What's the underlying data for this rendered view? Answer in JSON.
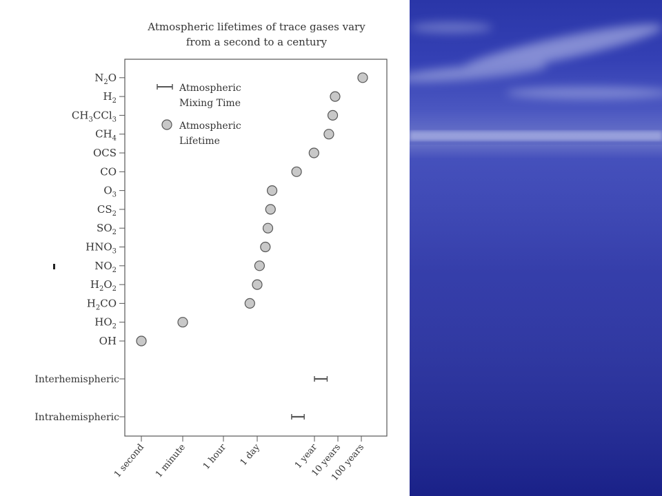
{
  "chart_data": {
    "type": "scatter",
    "title": [
      "Atmospheric lifetimes of trace gases vary",
      "from a second to a century"
    ],
    "x_axis": {
      "scale": "log",
      "ticks": [
        {
          "label": "1 second",
          "seconds": 1
        },
        {
          "label": "1 minute",
          "seconds": 60
        },
        {
          "label": "1 hour",
          "seconds": 3600
        },
        {
          "label": "1 day",
          "seconds": 86400
        },
        {
          "label": "1 year",
          "seconds": 31536000
        },
        {
          "label": "10 years",
          "seconds": 315360000
        },
        {
          "label": "100 years",
          "seconds": 3153600000
        }
      ]
    },
    "legend": {
      "position": "top-left",
      "items": [
        {
          "marker": "range-bar",
          "lines": [
            "Atmospheric",
            "Mixing Time"
          ]
        },
        {
          "marker": "circle",
          "lines": [
            "Atmospheric",
            "Lifetime"
          ]
        }
      ]
    },
    "series": [
      {
        "name": "Atmospheric Lifetime",
        "points": [
          {
            "label": "OH",
            "base": "OH",
            "sub": "",
            "tail": "",
            "seconds": 1
          },
          {
            "label": "HO2",
            "base": "HO",
            "sub": "2",
            "tail": "",
            "seconds": 60
          },
          {
            "label": "H2CO",
            "base": "H",
            "sub": "2",
            "tail": "CO",
            "seconds": 43200
          },
          {
            "label": "H2O2",
            "base": "H",
            "sub": "2",
            "tail": "O",
            "sub2": "2",
            "seconds": 86400
          },
          {
            "label": "NO2",
            "base": "NO",
            "sub": "2",
            "tail": "",
            "seconds": 110000
          },
          {
            "label": "HNO3",
            "base": "HNO",
            "sub": "3",
            "tail": "",
            "seconds": 200000
          },
          {
            "label": "SO2",
            "base": "SO",
            "sub": "2",
            "tail": "",
            "seconds": 260000
          },
          {
            "label": "CS2",
            "base": "CS",
            "sub": "2",
            "tail": "",
            "seconds": 340000
          },
          {
            "label": "O3",
            "base": "O",
            "sub": "3",
            "tail": "",
            "seconds": 400000
          },
          {
            "label": "CO",
            "base": "CO",
            "sub": "",
            "tail": "",
            "seconds": 5000000
          },
          {
            "label": "OCS",
            "base": "OCS",
            "sub": "",
            "tail": "",
            "seconds": 30000000
          },
          {
            "label": "CH4",
            "base": "CH",
            "sub": "4",
            "tail": "",
            "seconds": 130000000
          },
          {
            "label": "CH3CCl3",
            "base": "CH",
            "sub": "3",
            "tail": "CCl",
            "sub2": "3",
            "seconds": 190000000
          },
          {
            "label": "H2",
            "base": "H",
            "sub": "2",
            "tail": "",
            "seconds": 240000000
          },
          {
            "label": "N2O",
            "base": "N",
            "sub": "2",
            "tail": "O",
            "seconds": 3600000000
          }
        ]
      },
      {
        "name": "Atmospheric Mixing Time",
        "ranges": [
          {
            "label": "Interhemispheric",
            "min_seconds": 31536000,
            "max_seconds": 110000000
          },
          {
            "label": "Intrahemispheric",
            "min_seconds": 3000000,
            "max_seconds": 11000000
          }
        ]
      }
    ]
  },
  "colors": {
    "marker_fill": "#c8c8c8",
    "marker_stroke": "#555555",
    "axis": "#555555",
    "text": "#333333",
    "background_blue": "#2630a8"
  }
}
